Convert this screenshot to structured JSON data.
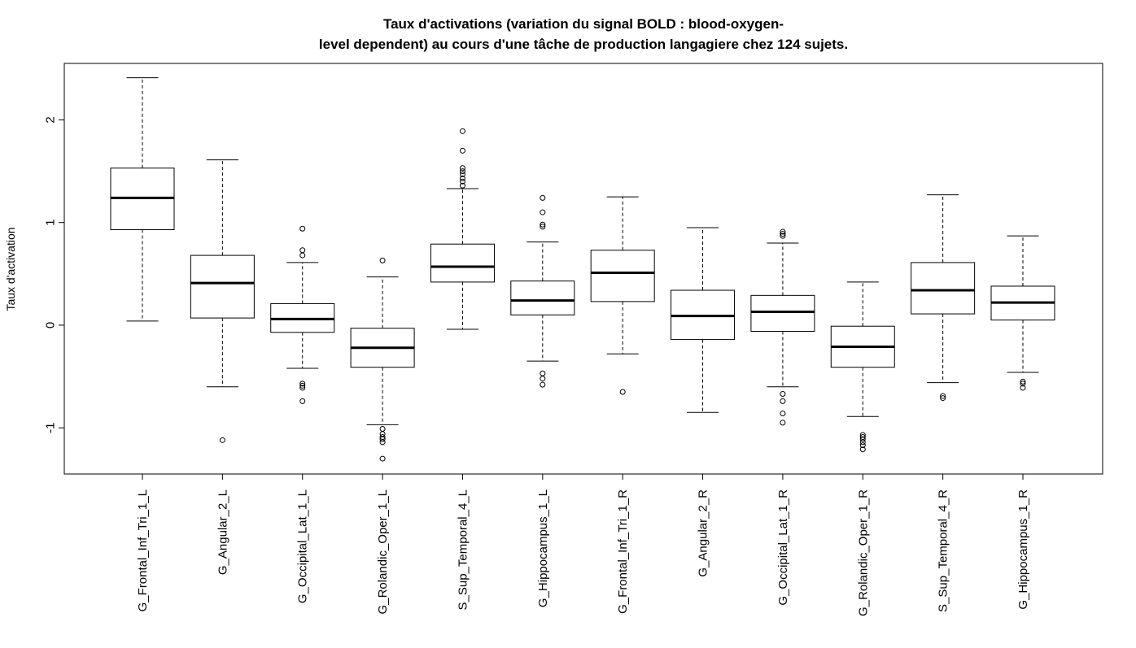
{
  "chart_data": {
    "type": "boxplot",
    "title_lines": [
      "Taux d'activations (variation du signal BOLD : blood-oxygen-",
      "level dependent) au cours d'une tâche de production langagiere chez 124 sujets."
    ],
    "ylabel": "Taux d'activation",
    "ylim": [
      -1.45,
      2.55
    ],
    "yticks": [
      -1,
      0,
      1,
      2
    ],
    "ytick_labels": [
      "-1",
      "0",
      "1",
      "2"
    ],
    "categories": [
      "G_Frontal_Inf_Tri_1_L",
      "G_Angular_2_L",
      "G_Occipital_Lat_1_L",
      "G_Rolandic_Oper_1_L",
      "S_Sup_Temporal_4_L",
      "G_Hippocampus_1_L",
      "G_Frontal_Inf_Tri_1_R",
      "G_Angular_2_R",
      "G_Occipital_Lat_1_R",
      "G_Rolandic_Oper_1_R",
      "S_Sup_Temporal_4_R",
      "G_Hippocampus_1_R"
    ],
    "boxes": [
      {
        "whisker_low": 0.04,
        "q1": 0.93,
        "median": 1.24,
        "q3": 1.53,
        "whisker_high": 2.41,
        "outliers": []
      },
      {
        "whisker_low": -0.6,
        "q1": 0.07,
        "median": 0.41,
        "q3": 0.68,
        "whisker_high": 1.61,
        "outliers": [
          -1.12
        ]
      },
      {
        "whisker_low": -0.42,
        "q1": -0.07,
        "median": 0.06,
        "q3": 0.21,
        "whisker_high": 0.61,
        "outliers": [
          0.94,
          0.73,
          0.68,
          -0.57,
          -0.59,
          -0.61,
          -0.74
        ]
      },
      {
        "whisker_low": -0.97,
        "q1": -0.41,
        "median": -0.22,
        "q3": -0.03,
        "whisker_high": 0.47,
        "outliers": [
          0.63,
          -1.01,
          -1.06,
          -1.09,
          -1.11,
          -1.14,
          -1.3
        ]
      },
      {
        "whisker_low": -0.04,
        "q1": 0.42,
        "median": 0.57,
        "q3": 0.79,
        "whisker_high": 1.33,
        "outliers": [
          1.89,
          1.7,
          1.53,
          1.5,
          1.47,
          1.43,
          1.4,
          1.36
        ]
      },
      {
        "whisker_low": -0.35,
        "q1": 0.1,
        "median": 0.24,
        "q3": 0.43,
        "whisker_high": 0.81,
        "outliers": [
          1.24,
          1.1,
          0.98,
          0.96,
          -0.47,
          -0.52,
          -0.58
        ]
      },
      {
        "whisker_low": -0.28,
        "q1": 0.23,
        "median": 0.51,
        "q3": 0.73,
        "whisker_high": 1.25,
        "outliers": [
          -0.65
        ]
      },
      {
        "whisker_low": -0.85,
        "q1": -0.14,
        "median": 0.09,
        "q3": 0.34,
        "whisker_high": 0.95,
        "outliers": []
      },
      {
        "whisker_low": -0.6,
        "q1": -0.06,
        "median": 0.13,
        "q3": 0.29,
        "whisker_high": 0.8,
        "outliers": [
          0.91,
          0.89,
          0.87,
          -0.67,
          -0.74,
          -0.86,
          -0.95
        ]
      },
      {
        "whisker_low": -0.89,
        "q1": -0.41,
        "median": -0.21,
        "q3": -0.01,
        "whisker_high": 0.42,
        "outliers": [
          -1.07,
          -1.09,
          -1.11,
          -1.14,
          -1.17,
          -1.21
        ]
      },
      {
        "whisker_low": -0.56,
        "q1": 0.11,
        "median": 0.34,
        "q3": 0.61,
        "whisker_high": 1.27,
        "outliers": [
          -0.69,
          -0.71
        ]
      },
      {
        "whisker_low": -0.46,
        "q1": 0.05,
        "median": 0.22,
        "q3": 0.38,
        "whisker_high": 0.87,
        "outliers": [
          -0.55,
          -0.57,
          -0.61
        ]
      }
    ],
    "grid": false,
    "colors": {
      "line": "#000000",
      "box_fill": "#ffffff",
      "background": "#ffffff"
    }
  }
}
